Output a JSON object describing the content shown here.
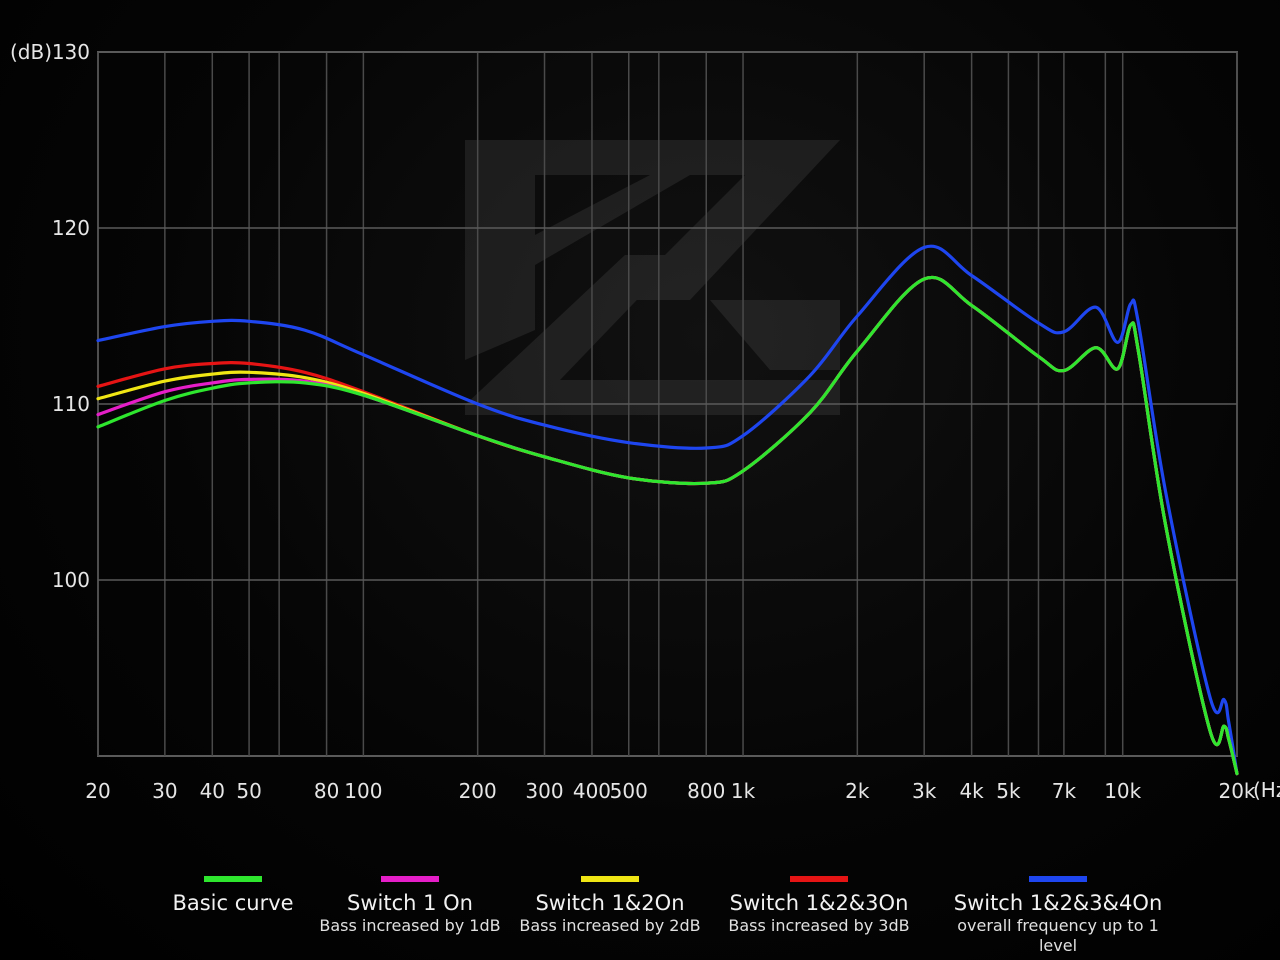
{
  "chart_data": {
    "type": "line",
    "x_scale": "log",
    "xlim": [
      20,
      20000
    ],
    "ylim": [
      90,
      130
    ],
    "y_ticks": [
      100,
      110,
      120,
      130
    ],
    "y_unit": "(dB)",
    "x_unit": "(Hz)",
    "x_tick_labels": [
      {
        "value": 20,
        "label": "20"
      },
      {
        "value": 30,
        "label": "30"
      },
      {
        "value": 40,
        "label": "40"
      },
      {
        "value": 50,
        "label": "50"
      },
      {
        "value": 80,
        "label": "80"
      },
      {
        "value": 100,
        "label": "100"
      },
      {
        "value": 200,
        "label": "200"
      },
      {
        "value": 300,
        "label": "300"
      },
      {
        "value": 400,
        "label": "400"
      },
      {
        "value": 500,
        "label": "500"
      },
      {
        "value": 800,
        "label": "800"
      },
      {
        "value": 1000,
        "label": "1k"
      },
      {
        "value": 2000,
        "label": "2k"
      },
      {
        "value": 3000,
        "label": "3k"
      },
      {
        "value": 4000,
        "label": "4k"
      },
      {
        "value": 5000,
        "label": "5k"
      },
      {
        "value": 7000,
        "label": "7k"
      },
      {
        "value": 10000,
        "label": "10k"
      },
      {
        "value": 20000,
        "label": "20k"
      }
    ],
    "grid_x": [
      20,
      30,
      40,
      50,
      60,
      80,
      100,
      200,
      300,
      400,
      500,
      600,
      800,
      1000,
      2000,
      3000,
      4000,
      5000,
      6000,
      7000,
      9000,
      10000,
      20000
    ],
    "grid_y": [
      100,
      110,
      120,
      130
    ],
    "grid": true,
    "legend_position": "bottom",
    "series": [
      {
        "name": "Basic curve",
        "description": "",
        "color": "#2ee62e",
        "x": [
          20,
          30,
          40,
          50,
          70,
          100,
          200,
          300,
          500,
          800,
          1000,
          1500,
          2000,
          3000,
          4000,
          6000,
          7000,
          8500,
          9700,
          10500,
          11000,
          13000,
          17000,
          18500,
          19000,
          20000
        ],
        "y": [
          108.7,
          110.2,
          110.9,
          111.2,
          111.2,
          110.5,
          108.2,
          107.0,
          105.8,
          105.5,
          106.2,
          109.5,
          113.0,
          117.1,
          115.6,
          112.7,
          111.9,
          113.2,
          112.0,
          114.5,
          113.0,
          103.0,
          91.4,
          91.7,
          91.0,
          89.0
        ]
      },
      {
        "name": "Switch 1 On",
        "description": "Bass increased by 1dB",
        "color": "#e61ec8",
        "x": [
          20,
          30,
          40,
          50,
          70,
          100,
          200
        ],
        "y": [
          109.4,
          110.7,
          111.2,
          111.4,
          111.3,
          110.5,
          108.2
        ]
      },
      {
        "name": "Switch 1&2On",
        "description": "Bass increased by 2dB",
        "color": "#f0e614",
        "x": [
          20,
          30,
          40,
          50,
          70,
          100,
          200
        ],
        "y": [
          110.3,
          111.3,
          111.7,
          111.8,
          111.5,
          110.6,
          108.2
        ]
      },
      {
        "name": "Switch 1&2&3On",
        "description": "Bass increased by 3dB",
        "color": "#e61414",
        "x": [
          20,
          30,
          40,
          50,
          70,
          100,
          200
        ],
        "y": [
          111.0,
          112.0,
          112.3,
          112.3,
          111.8,
          110.7,
          108.2
        ]
      },
      {
        "name": "Switch 1&2&3&4On",
        "description": "overall frequency up to 1 level",
        "color": "#1e46f0",
        "x": [
          20,
          30,
          40,
          50,
          70,
          100,
          200,
          300,
          500,
          800,
          1000,
          1500,
          2000,
          3000,
          4000,
          6000,
          7000,
          8500,
          9700,
          10500,
          11000,
          13000,
          17000,
          18500,
          19000,
          20000
        ],
        "y": [
          113.6,
          114.4,
          114.7,
          114.7,
          114.2,
          112.8,
          110.0,
          108.8,
          107.8,
          107.5,
          108.2,
          111.6,
          115.0,
          118.9,
          117.3,
          114.6,
          114.1,
          115.5,
          113.5,
          115.7,
          114.6,
          104.9,
          93.3,
          93.2,
          92.0,
          89.0
        ]
      }
    ]
  }
}
